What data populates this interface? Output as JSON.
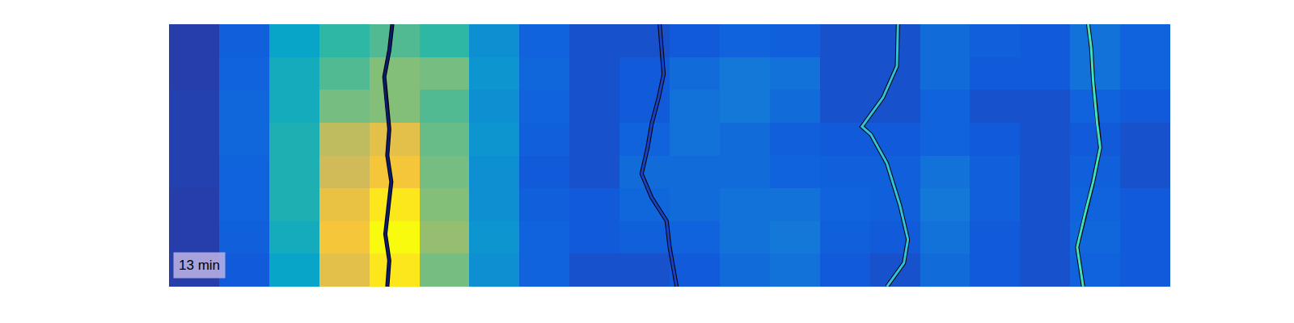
{
  "chart_data": {
    "type": "heatmap",
    "xlim": [
      0,
      100
    ],
    "ylim": [
      0,
      100
    ],
    "tick_labels": false,
    "grid": false,
    "zlim": [
      0,
      1
    ],
    "x": [
      2.5,
      7.5,
      12.5,
      17.5,
      22.5,
      27.5,
      32.5,
      37.5,
      42.5,
      47.5,
      52.5,
      57.5,
      62.5,
      67.5,
      72.5,
      77.5,
      82.5,
      87.5,
      92.5,
      97.5
    ],
    "y": [
      6.25,
      18.75,
      31.25,
      43.75,
      56.25,
      68.75,
      81.25,
      93.75
    ],
    "z": [
      [
        0.05,
        0.12,
        0.38,
        0.8,
        0.95,
        0.6,
        0.3,
        0.15,
        0.1,
        0.1,
        0.12,
        0.18,
        0.2,
        0.12,
        0.1,
        0.18,
        0.12,
        0.1,
        0.15,
        0.12
      ],
      [
        0.05,
        0.14,
        0.42,
        0.85,
        1.0,
        0.65,
        0.32,
        0.15,
        0.12,
        0.14,
        0.15,
        0.2,
        0.22,
        0.14,
        0.12,
        0.2,
        0.12,
        0.1,
        0.16,
        0.12
      ],
      [
        0.05,
        0.15,
        0.45,
        0.82,
        0.95,
        0.62,
        0.3,
        0.14,
        0.12,
        0.16,
        0.18,
        0.2,
        0.2,
        0.15,
        0.14,
        0.22,
        0.14,
        0.1,
        0.15,
        0.12
      ],
      [
        0.06,
        0.15,
        0.45,
        0.75,
        0.85,
        0.6,
        0.3,
        0.12,
        0.1,
        0.18,
        0.18,
        0.18,
        0.15,
        0.14,
        0.14,
        0.2,
        0.14,
        0.1,
        0.14,
        0.1
      ],
      [
        0.06,
        0.16,
        0.45,
        0.72,
        0.8,
        0.58,
        0.32,
        0.14,
        0.1,
        0.15,
        0.2,
        0.18,
        0.14,
        0.12,
        0.12,
        0.15,
        0.12,
        0.1,
        0.12,
        0.1
      ],
      [
        0.06,
        0.16,
        0.42,
        0.6,
        0.62,
        0.55,
        0.3,
        0.15,
        0.1,
        0.12,
        0.2,
        0.22,
        0.18,
        0.1,
        0.1,
        0.15,
        0.1,
        0.1,
        0.15,
        0.12
      ],
      [
        0.05,
        0.15,
        0.42,
        0.55,
        0.62,
        0.6,
        0.32,
        0.16,
        0.1,
        0.12,
        0.18,
        0.22,
        0.2,
        0.1,
        0.1,
        0.18,
        0.12,
        0.12,
        0.2,
        0.15
      ],
      [
        0.05,
        0.14,
        0.38,
        0.5,
        0.55,
        0.5,
        0.3,
        0.15,
        0.1,
        0.1,
        0.12,
        0.15,
        0.14,
        0.1,
        0.1,
        0.18,
        0.14,
        0.12,
        0.2,
        0.15
      ]
    ],
    "series": [
      {
        "type": "line",
        "color": "#0b1a6e",
        "x": [
          22.3,
          22.0,
          21.5,
          21.7,
          22.0,
          21.8,
          22.2,
          21.9,
          21.6,
          22.0,
          21.8
        ],
        "values": [
          100,
          90,
          80,
          70,
          60,
          50,
          40,
          30,
          20,
          10,
          0
        ]
      },
      {
        "type": "line",
        "color": "#1a3fbf",
        "x": [
          49.0,
          49.4,
          48.9,
          48.2,
          47.8,
          47.2,
          48.2,
          49.7,
          50.0,
          50.7
        ],
        "values": [
          100,
          81,
          72,
          62,
          53,
          43,
          34,
          25,
          15,
          0
        ]
      },
      {
        "type": "line",
        "color": "#33c3d8",
        "x": [
          72.8,
          72.7,
          71.3,
          69.2,
          70.1,
          71.7,
          73.0,
          73.8,
          73.4,
          71.7
        ],
        "values": [
          100,
          84,
          72,
          61,
          58,
          47,
          31,
          18,
          9,
          0
        ]
      },
      {
        "type": "line",
        "color": "#40e0c0",
        "x": [
          91.8,
          92.1,
          92.3,
          92.7,
          93.0,
          92.3,
          91.5,
          90.7,
          91.3
        ],
        "values": [
          100,
          91,
          78,
          62,
          53,
          40,
          28,
          15,
          0
        ]
      }
    ],
    "annotations": [
      "13 min"
    ]
  }
}
